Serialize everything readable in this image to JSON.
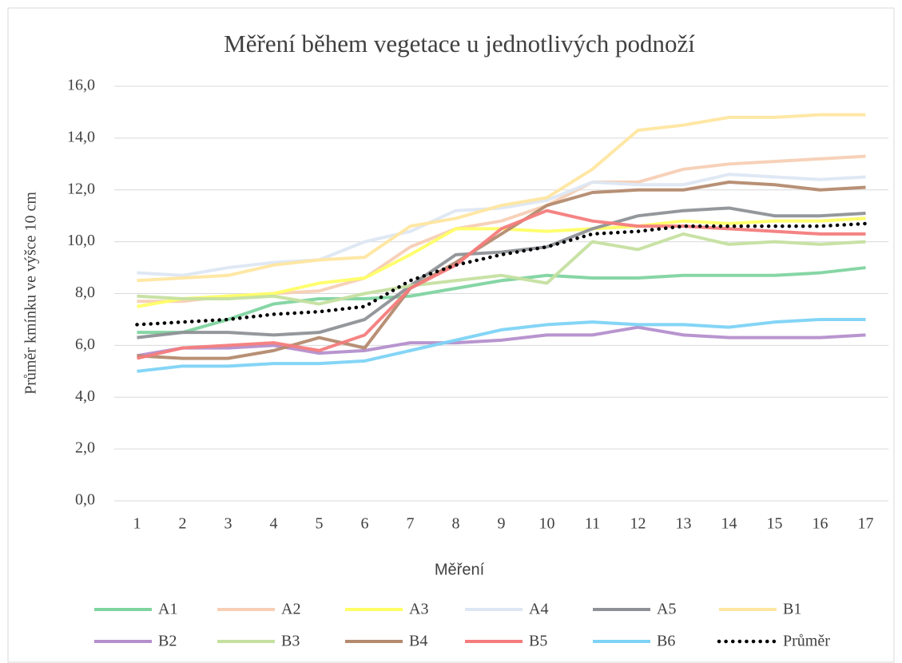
{
  "chart_data": {
    "type": "line",
    "title": "Měření během vegetace u jednotlivých podnoží",
    "x_label": "Měření",
    "y_label": "Průměr kmínku ve výšce 10 cm",
    "categories": [
      1,
      2,
      3,
      4,
      5,
      6,
      7,
      8,
      9,
      10,
      11,
      12,
      13,
      14,
      15,
      16,
      17
    ],
    "ylim": [
      0,
      16
    ],
    "yticks": [
      {
        "value": 0,
        "label": "0,0"
      },
      {
        "value": 2,
        "label": "2,0"
      },
      {
        "value": 4,
        "label": "4,0"
      },
      {
        "value": 6,
        "label": "6,0"
      },
      {
        "value": 8,
        "label": "8,0"
      },
      {
        "value": 10,
        "label": "10,0"
      },
      {
        "value": 12,
        "label": "12,0"
      },
      {
        "value": 14,
        "label": "14,0"
      },
      {
        "value": 16,
        "label": "16,0"
      }
    ],
    "grid": true,
    "legend": "bottom",
    "series": [
      {
        "name": "A1",
        "color": "#7fd4a0",
        "values": [
          6.5,
          6.5,
          7.0,
          7.6,
          7.8,
          7.8,
          7.9,
          8.2,
          8.5,
          8.7,
          8.6,
          8.6,
          8.7,
          8.7,
          8.7,
          8.8,
          9.0
        ]
      },
      {
        "name": "A2",
        "color": "#f7cfb5",
        "values": [
          7.7,
          7.7,
          7.9,
          8.0,
          8.1,
          8.6,
          9.8,
          10.5,
          10.8,
          11.4,
          12.3,
          12.3,
          12.8,
          13.0,
          13.1,
          13.2,
          13.3
        ]
      },
      {
        "name": "A3",
        "color": "#ffff66",
        "values": [
          7.5,
          7.8,
          7.9,
          8.0,
          8.4,
          8.6,
          9.5,
          10.5,
          10.5,
          10.4,
          10.5,
          10.6,
          10.8,
          10.7,
          10.8,
          10.8,
          10.9
        ]
      },
      {
        "name": "A4",
        "color": "#dde7f3",
        "values": [
          8.8,
          8.7,
          9.0,
          9.2,
          9.3,
          10.0,
          10.4,
          11.2,
          11.3,
          11.6,
          12.3,
          12.2,
          12.2,
          12.6,
          12.5,
          12.4,
          12.5
        ]
      },
      {
        "name": "A5",
        "color": "#8e9196",
        "values": [
          6.3,
          6.5,
          6.5,
          6.4,
          6.5,
          7.0,
          8.3,
          9.5,
          9.6,
          9.8,
          10.5,
          11.0,
          11.2,
          11.3,
          11.0,
          11.0,
          11.1
        ]
      },
      {
        "name": "B1",
        "color": "#ffe6a0",
        "values": [
          8.5,
          8.6,
          8.7,
          9.1,
          9.3,
          9.4,
          10.6,
          10.9,
          11.4,
          11.7,
          12.8,
          14.3,
          14.5,
          14.8,
          14.8,
          14.9,
          14.9
        ]
      },
      {
        "name": "B2",
        "color": "#b48fcc",
        "values": [
          5.6,
          5.9,
          5.9,
          6.0,
          5.7,
          5.8,
          6.1,
          6.1,
          6.2,
          6.4,
          6.4,
          6.7,
          6.4,
          6.3,
          6.3,
          6.3,
          6.4
        ]
      },
      {
        "name": "B3",
        "color": "#c5e0a0",
        "values": [
          7.9,
          7.8,
          7.8,
          7.9,
          7.6,
          8.0,
          8.3,
          8.5,
          8.7,
          8.4,
          10.0,
          9.7,
          10.3,
          9.9,
          10.0,
          9.9,
          10.0
        ]
      },
      {
        "name": "B4",
        "color": "#b48a6e",
        "values": [
          5.6,
          5.5,
          5.5,
          5.8,
          6.3,
          5.9,
          8.2,
          9.2,
          10.3,
          11.4,
          11.9,
          12.0,
          12.0,
          12.3,
          12.2,
          12.0,
          12.1
        ]
      },
      {
        "name": "B5",
        "color": "#f47c7c",
        "values": [
          5.5,
          5.9,
          6.0,
          6.1,
          5.8,
          6.4,
          8.2,
          9.1,
          10.5,
          11.2,
          10.8,
          10.6,
          10.6,
          10.5,
          10.4,
          10.3,
          10.3
        ]
      },
      {
        "name": "B6",
        "color": "#7dd3f5",
        "values": [
          5.0,
          5.2,
          5.2,
          5.3,
          5.3,
          5.4,
          5.8,
          6.2,
          6.6,
          6.8,
          6.9,
          6.8,
          6.8,
          6.7,
          6.9,
          7.0,
          7.0
        ]
      },
      {
        "name": "Průměr",
        "color": "#000000",
        "dotted": true,
        "values": [
          6.8,
          6.9,
          7.0,
          7.2,
          7.3,
          7.5,
          8.5,
          9.1,
          9.5,
          9.8,
          10.3,
          10.4,
          10.6,
          10.6,
          10.6,
          10.6,
          10.7
        ]
      }
    ]
  }
}
